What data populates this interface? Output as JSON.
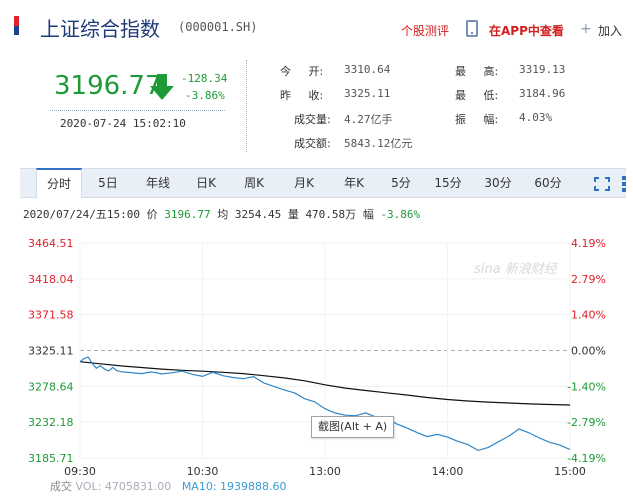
{
  "header": {
    "index_name": "上证综合指数",
    "index_code": "(000001.SH)",
    "stock_review_label": "个股测评",
    "app_view_label": "在APP中查看",
    "add_label": "加入"
  },
  "quote": {
    "price": "3196.77",
    "change_abs": "-128.34",
    "change_pct": "-3.86%",
    "time": "2020-07-24 15:02:10",
    "direction": "down",
    "down_color": "#1e9a37",
    "up_color": "#e0202a"
  },
  "stats": {
    "open_label": "今 开:",
    "open_value": "3310.64",
    "prev_close_label": "昨 收:",
    "prev_close_value": "3325.11",
    "volume_label": "成交量:",
    "volume_value": "4.27亿手",
    "turnover_label": "成交额:",
    "turnover_value": "5843.12亿元",
    "high_label": "最 高:",
    "high_value": "3319.13",
    "low_label": "最 低:",
    "low_value": "3184.96",
    "amplitude_label": "振 幅:",
    "amplitude_value": "4.03%"
  },
  "tabs": [
    "分时",
    "5日",
    "年线",
    "日K",
    "周K",
    "月K",
    "年K",
    "5分",
    "15分",
    "30分",
    "60分"
  ],
  "active_tab": "分时",
  "info_line": {
    "date": "2020/07/24/五15:00",
    "price_label": "价",
    "price_value": "3196.77",
    "avg_label": "均",
    "avg_value": "3254.45",
    "vol_label": "量",
    "vol_value": "470.58万",
    "amp_label": "幅",
    "amp_value": "-3.86%"
  },
  "tooltip": "截图(Alt + A)",
  "watermark": "sina 新浪财经",
  "volume_bar": {
    "label": "成交",
    "vol_text": "VOL: 4705831.00",
    "ma_text": "MA10: 1939888.60"
  },
  "chart_data": {
    "type": "line",
    "title": "",
    "base": 3325.11,
    "ylim": [
      3185.71,
      3464.51
    ],
    "y_ticks_left": [
      "3464.51",
      "3418.04",
      "3371.58",
      "3325.11",
      "3278.64",
      "3232.18",
      "3185.71"
    ],
    "y_ticks_right": [
      "4.19%",
      "2.79%",
      "1.40%",
      "0.00%",
      "-1.40%",
      "-2.79%",
      "-4.19%"
    ],
    "x_ticks": [
      "09:30",
      "10:30",
      "13:00",
      "14:00",
      "15:00"
    ],
    "series": [
      {
        "key": "price",
        "color": "#2f86c8",
        "x": [
          0,
          2,
          4,
          6,
          8,
          10,
          12,
          14,
          16,
          18,
          20,
          25,
          30,
          35,
          40,
          45,
          50,
          55,
          60,
          65,
          70,
          75,
          80,
          85,
          90,
          95,
          100,
          105,
          110,
          115,
          120,
          125,
          130,
          135,
          140,
          145,
          150,
          155,
          160,
          165,
          170,
          175,
          180,
          185,
          190,
          195,
          200,
          205,
          210,
          215,
          220,
          225,
          230,
          235,
          240
        ],
        "values": [
          3310.6,
          3314.8,
          3316.5,
          3308.2,
          3302.1,
          3305.4,
          3301.0,
          3298.7,
          3303.2,
          3299.1,
          3297.6,
          3296.4,
          3295.1,
          3297.3,
          3294.8,
          3296.2,
          3298.4,
          3294.2,
          3291.5,
          3296.8,
          3292.4,
          3290.1,
          3288.6,
          3291.3,
          3283.1,
          3278.5,
          3274.0,
          3270.3,
          3262.6,
          3258.4,
          3249.7,
          3244.1,
          3241.2,
          3240.5,
          3244.2,
          3238.8,
          3236.9,
          3230.1,
          3224.7,
          3218.9,
          3213.4,
          3216.3,
          3212.8,
          3207.4,
          3203.1,
          3195.6,
          3199.5,
          3206.8,
          3214.1,
          3223.4,
          3218.3,
          3211.7,
          3206.1,
          3202.4,
          3196.77
        ]
      },
      {
        "key": "average",
        "color": "#111111",
        "x": [
          0,
          10,
          20,
          30,
          40,
          50,
          60,
          70,
          80,
          90,
          100,
          110,
          120,
          130,
          140,
          150,
          160,
          170,
          180,
          190,
          200,
          210,
          220,
          230,
          240
        ],
        "values": [
          3310.6,
          3307.9,
          3305.2,
          3303.1,
          3301.0,
          3299.4,
          3298.3,
          3296.8,
          3295.1,
          3292.4,
          3289.6,
          3285.8,
          3280.6,
          3276.4,
          3273.2,
          3270.3,
          3267.4,
          3264.2,
          3261.6,
          3259.6,
          3258.2,
          3257.0,
          3255.9,
          3255.1,
          3254.45
        ]
      }
    ],
    "x_total": 240,
    "x_tick_positions": [
      0,
      60,
      120,
      180,
      240
    ],
    "grid": true
  }
}
